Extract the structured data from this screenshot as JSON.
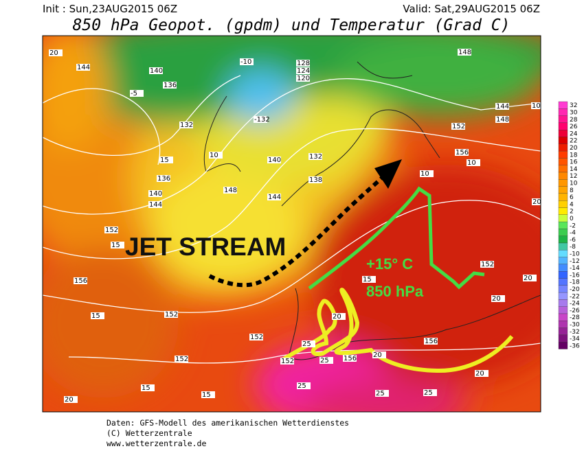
{
  "header": {
    "init": "Init : Sun,23AUG2015 06Z",
    "valid": "Valid: Sat,29AUG2015 06Z",
    "title": "850 hPa Geopot. (gpdm) und Temperatur (Grad C)"
  },
  "annotations": {
    "jet_stream": "JET STREAM",
    "temperature": "+15° C",
    "level": "850 hPa"
  },
  "color_scale": [
    32,
    30,
    28,
    26,
    24,
    22,
    20,
    18,
    16,
    14,
    12,
    10,
    8,
    6,
    4,
    2,
    0,
    -2,
    -4,
    -6,
    -8,
    -10,
    -12,
    -14,
    -16,
    -18,
    -20,
    -22,
    -24,
    -26,
    -28,
    -30,
    -32,
    -34,
    -36
  ],
  "map_labels": [
    "20",
    "144",
    "140",
    "136",
    "-5",
    "132",
    "136",
    "140",
    "144",
    "152",
    "15",
    "156",
    "10",
    "15",
    "148",
    "144",
    "140",
    "132",
    "138",
    "-10",
    "-132",
    "128",
    "124",
    "120",
    "148",
    "152",
    "156",
    "10",
    "148",
    "144",
    "10",
    "20",
    "152",
    "20",
    "20",
    "152",
    "152",
    "15",
    "20",
    "15",
    "152",
    "152",
    "156",
    "156",
    "20",
    "25",
    "25",
    "25",
    "25",
    "25",
    "20",
    "20",
    "15",
    "15",
    "10"
  ],
  "footer": {
    "source": "Daten: GFS-Modell des amerikanischen Wetterdienstes",
    "copyright": "(C) Wetterzentrale",
    "url": "www.wetterzentrale.de"
  }
}
